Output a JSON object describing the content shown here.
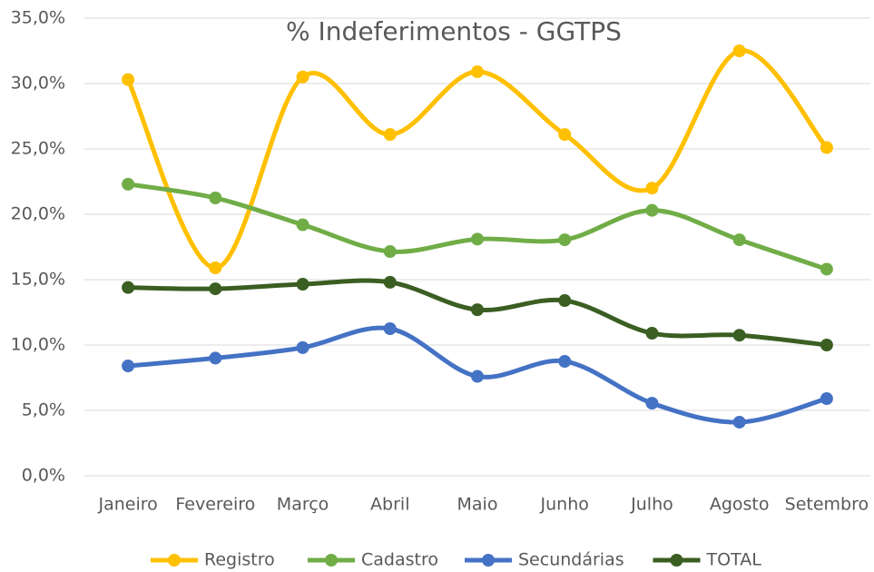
{
  "chart_data": {
    "type": "line",
    "title": "% Indeferimentos - GGTPS",
    "categories": [
      "Janeiro",
      "Fevereiro",
      "Março",
      "Abril",
      "Maio",
      "Junho",
      "Julho",
      "Agosto",
      "Setembro"
    ],
    "series": [
      {
        "name": "Registro",
        "color": "#ffc000",
        "values": [
          30.3,
          15.9,
          30.5,
          26.1,
          30.9,
          26.1,
          22.0,
          32.5,
          25.1
        ]
      },
      {
        "name": "Cadastro",
        "color": "#70ad47",
        "values": [
          22.3,
          21.25,
          19.2,
          17.15,
          18.1,
          18.05,
          20.3,
          18.05,
          15.8
        ]
      },
      {
        "name": "Secundárias",
        "color": "#4472c4",
        "values": [
          8.4,
          9.0,
          9.8,
          11.25,
          7.6,
          8.75,
          5.55,
          4.1,
          5.9
        ]
      },
      {
        "name": "TOTAL",
        "color": "#3b5e22",
        "values": [
          14.4,
          14.3,
          14.65,
          14.8,
          12.7,
          13.4,
          10.9,
          10.75,
          10.0
        ]
      }
    ],
    "ylim": [
      0,
      35
    ],
    "yticks": [
      {
        "value": 0,
        "label": "0,0%"
      },
      {
        "value": 5,
        "label": "5,0%"
      },
      {
        "value": 10,
        "label": "10,0%"
      },
      {
        "value": 15,
        "label": "15,0%"
      },
      {
        "value": 20,
        "label": "20,0%"
      },
      {
        "value": 25,
        "label": "25,0%"
      },
      {
        "value": 30,
        "label": "30,0%"
      },
      {
        "value": 35,
        "label": "35,0%"
      }
    ],
    "grid": true,
    "smooth": true,
    "legend": "bottom"
  }
}
